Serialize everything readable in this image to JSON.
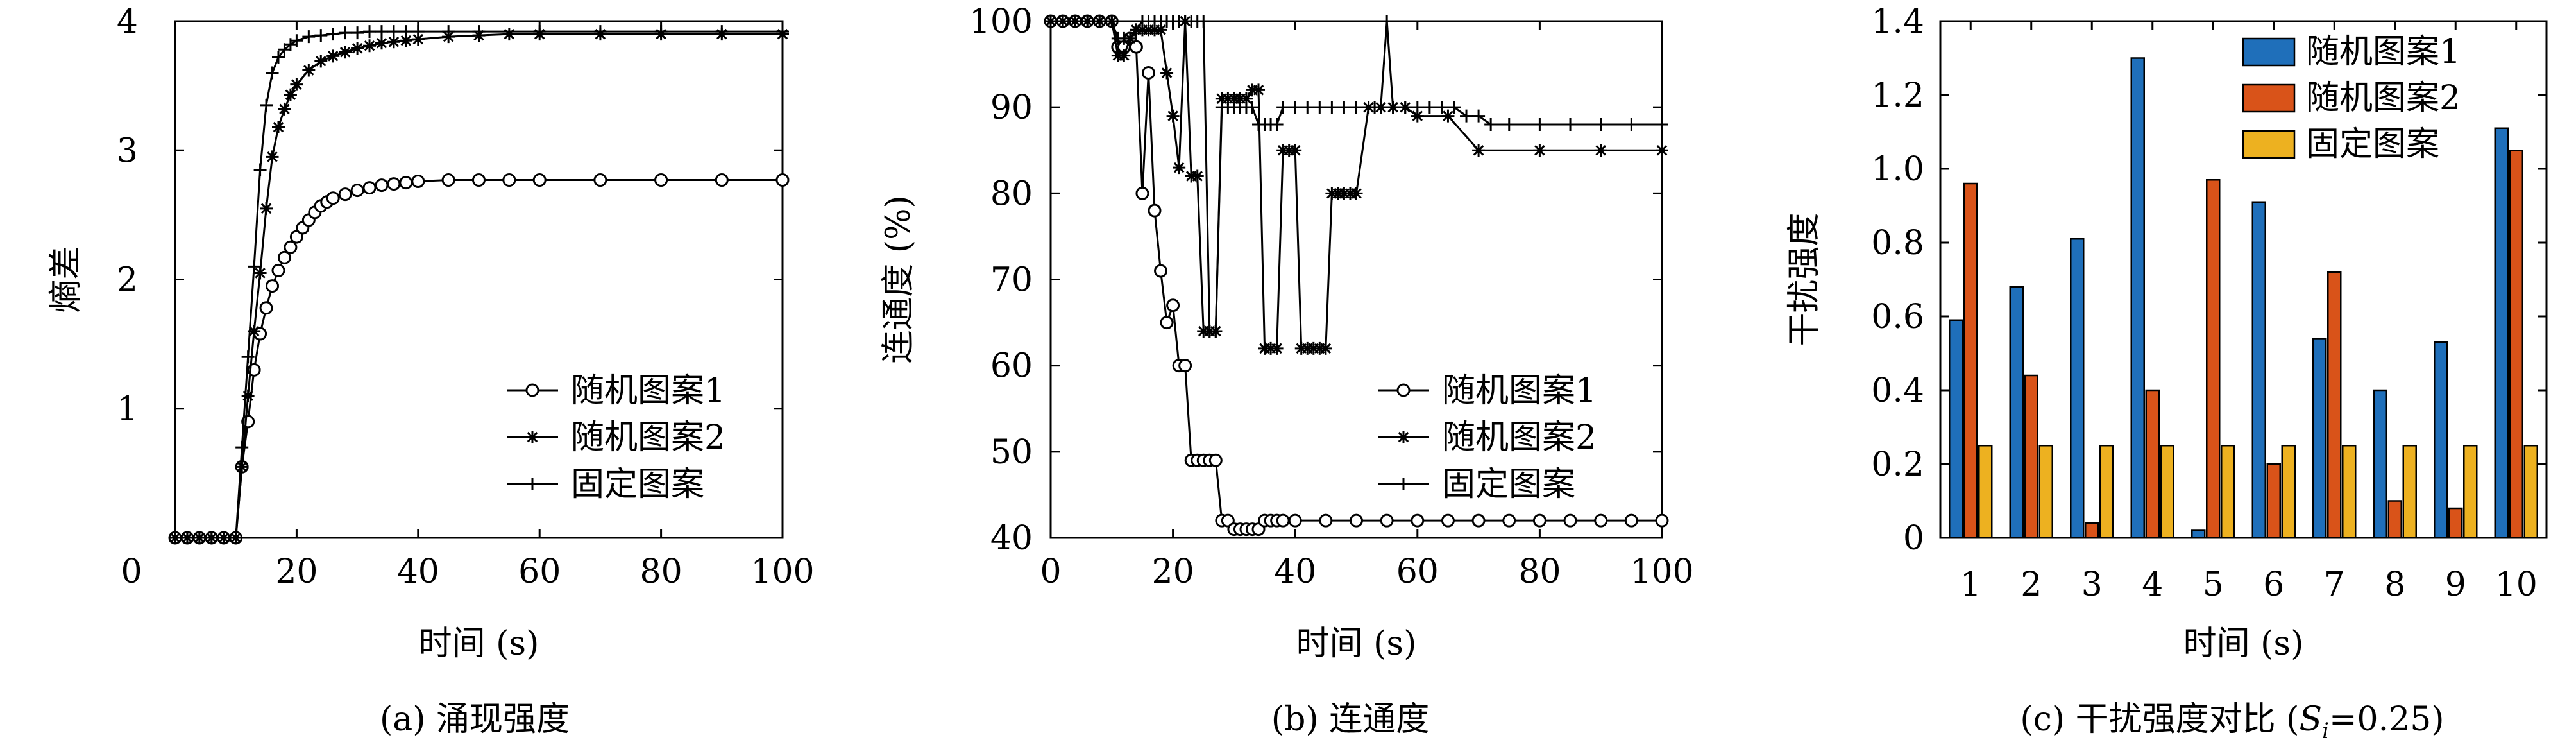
{
  "chart_data": [
    {
      "type": "line",
      "caption": "(a) 涌现强度",
      "xlabel": "时间 (s)",
      "ylabel": "熵差",
      "xlim": [
        0,
        100
      ],
      "ylim": [
        0,
        4
      ],
      "xticks": [
        0,
        20,
        40,
        60,
        80,
        100
      ],
      "yticks": [
        1,
        2,
        3,
        4
      ],
      "legend_position": "bottom-right",
      "series": [
        {
          "name": "随机图案1",
          "marker": "circle",
          "x": [
            0,
            2,
            4,
            6,
            8,
            10,
            11,
            12,
            13,
            14,
            15,
            16,
            17,
            18,
            19,
            20,
            21,
            22,
            23,
            24,
            25,
            26,
            28,
            30,
            32,
            34,
            36,
            38,
            40,
            45,
            50,
            55,
            60,
            70,
            80,
            90,
            100
          ],
          "y": [
            0,
            0,
            0,
            0,
            0,
            0,
            0.55,
            0.9,
            1.3,
            1.58,
            1.78,
            1.95,
            2.07,
            2.17,
            2.25,
            2.33,
            2.4,
            2.46,
            2.52,
            2.57,
            2.6,
            2.63,
            2.66,
            2.69,
            2.71,
            2.73,
            2.74,
            2.75,
            2.76,
            2.77,
            2.77,
            2.77,
            2.77,
            2.77,
            2.77,
            2.77,
            2.77
          ]
        },
        {
          "name": "随机图案2",
          "marker": "asterisk",
          "x": [
            0,
            2,
            4,
            6,
            8,
            10,
            11,
            12,
            13,
            14,
            15,
            16,
            17,
            18,
            19,
            20,
            22,
            24,
            26,
            28,
            30,
            32,
            34,
            36,
            38,
            40,
            45,
            50,
            55,
            60,
            70,
            80,
            90,
            100
          ],
          "y": [
            0,
            0,
            0,
            0,
            0,
            0,
            0.55,
            1.1,
            1.6,
            2.05,
            2.55,
            2.95,
            3.18,
            3.32,
            3.43,
            3.51,
            3.62,
            3.69,
            3.73,
            3.76,
            3.79,
            3.81,
            3.83,
            3.84,
            3.85,
            3.86,
            3.88,
            3.89,
            3.9,
            3.9,
            3.9,
            3.9,
            3.9,
            3.9
          ]
        },
        {
          "name": "固定图案",
          "marker": "plus",
          "x": [
            0,
            2,
            4,
            6,
            8,
            10,
            11,
            12,
            13,
            14,
            15,
            16,
            17,
            18,
            19,
            20,
            22,
            24,
            26,
            28,
            30,
            32,
            34,
            36,
            38,
            40,
            45,
            50,
            60,
            70,
            80,
            90,
            100
          ],
          "y": [
            0,
            0,
            0,
            0,
            0,
            0,
            0.7,
            1.4,
            2.1,
            2.85,
            3.35,
            3.6,
            3.72,
            3.78,
            3.82,
            3.85,
            3.88,
            3.89,
            3.9,
            3.91,
            3.91,
            3.92,
            3.92,
            3.92,
            3.92,
            3.92,
            3.92,
            3.92,
            3.92,
            3.92,
            3.92,
            3.92,
            3.92
          ]
        }
      ]
    },
    {
      "type": "line",
      "caption": "(b) 连通度",
      "xlabel": "时间 (s)",
      "ylabel": "连通度 (%)",
      "xlim": [
        0,
        100
      ],
      "ylim": [
        40,
        100
      ],
      "xticks": [
        0,
        20,
        40,
        60,
        80,
        100
      ],
      "yticks": [
        40,
        50,
        60,
        70,
        80,
        90,
        100
      ],
      "legend_position": "bottom-right",
      "series": [
        {
          "name": "随机图案1",
          "marker": "circle",
          "x": [
            0,
            2,
            4,
            6,
            8,
            10,
            11,
            12,
            13,
            14,
            15,
            16,
            17,
            18,
            19,
            20,
            21,
            22,
            23,
            24,
            25,
            26,
            27,
            28,
            29,
            30,
            31,
            32,
            33,
            34,
            35,
            36,
            37,
            38,
            40,
            45,
            50,
            55,
            60,
            65,
            70,
            75,
            80,
            85,
            90,
            95,
            100
          ],
          "y": [
            100,
            100,
            100,
            100,
            100,
            100,
            97,
            97,
            98,
            97,
            80,
            94,
            78,
            71,
            65,
            67,
            60,
            60,
            49,
            49,
            49,
            49,
            49,
            42,
            42,
            41,
            41,
            41,
            41,
            41,
            42,
            42,
            42,
            42,
            42,
            42,
            42,
            42,
            42,
            42,
            42,
            42,
            42,
            42,
            42,
            42,
            42
          ]
        },
        {
          "name": "随机图案2",
          "marker": "asterisk",
          "x": [
            0,
            2,
            4,
            6,
            8,
            10,
            11,
            12,
            13,
            14,
            15,
            16,
            17,
            18,
            19,
            20,
            21,
            22,
            23,
            24,
            25,
            26,
            27,
            28,
            29,
            30,
            31,
            32,
            33,
            34,
            35,
            36,
            37,
            38,
            39,
            40,
            41,
            42,
            43,
            44,
            45,
            46,
            47,
            48,
            49,
            50,
            52,
            54,
            56,
            58,
            60,
            65,
            70,
            80,
            90,
            100
          ],
          "y": [
            100,
            100,
            100,
            100,
            100,
            100,
            96,
            96,
            98,
            99,
            99,
            99,
            99,
            99,
            94,
            89,
            83,
            100,
            82,
            82,
            64,
            64,
            64,
            91,
            91,
            91,
            91,
            91,
            92,
            92,
            62,
            62,
            62,
            85,
            85,
            85,
            62,
            62,
            62,
            62,
            62,
            80,
            80,
            80,
            80,
            80,
            90,
            90,
            90,
            90,
            89,
            89,
            85,
            85,
            85,
            85
          ]
        },
        {
          "name": "固定图案",
          "marker": "plus",
          "x": [
            0,
            2,
            4,
            6,
            8,
            10,
            11,
            12,
            13,
            14,
            15,
            16,
            17,
            18,
            19,
            20,
            21,
            22,
            23,
            24,
            25,
            26,
            27,
            28,
            29,
            30,
            31,
            32,
            33,
            34,
            35,
            36,
            37,
            38,
            40,
            42,
            44,
            46,
            48,
            50,
            52,
            53,
            54,
            55,
            56,
            58,
            60,
            62,
            64,
            66,
            68,
            70,
            72,
            75,
            80,
            85,
            90,
            95,
            100
          ],
          "y": [
            100,
            100,
            100,
            100,
            100,
            100,
            98,
            98,
            98,
            99,
            100,
            100,
            100,
            100,
            100,
            100,
            100,
            100,
            100,
            100,
            100,
            64,
            64,
            90,
            90,
            90,
            90,
            90,
            90,
            88,
            88,
            88,
            88,
            90,
            90,
            90,
            90,
            90,
            90,
            90,
            90,
            90,
            90,
            100,
            90,
            90,
            90,
            90,
            90,
            90,
            89,
            89,
            88,
            88,
            88,
            88,
            88,
            88,
            88
          ]
        }
      ]
    },
    {
      "type": "bar",
      "caption": "(c) 干扰强度对比 (Sᵢ=0.25)",
      "caption_prefix": "(c) 干扰强度对比 (",
      "caption_var": "S",
      "caption_sub": "i",
      "caption_suffix": "=0.25)",
      "xlabel": "时间 (s)",
      "ylabel": "干扰强度",
      "ylim": [
        0,
        1.4
      ],
      "yticks": [
        0,
        0.2,
        0.4,
        0.6,
        0.8,
        1.0,
        1.2,
        1.4
      ],
      "ytick_labels": [
        "0",
        "0.2",
        "0.4",
        "0.6",
        "0.8",
        "1.0",
        "1.2",
        "1.4"
      ],
      "categories": [
        "1",
        "2",
        "3",
        "4",
        "5",
        "6",
        "7",
        "8",
        "9",
        "10"
      ],
      "legend_position": "top-right",
      "series": [
        {
          "name": "随机图案1",
          "color": "#1f6fba",
          "values": [
            0.59,
            0.68,
            0.81,
            1.3,
            0.02,
            0.91,
            0.54,
            0.4,
            0.53,
            1.11
          ]
        },
        {
          "name": "随机图案2",
          "color": "#d95319",
          "values": [
            0.96,
            0.44,
            0.04,
            0.4,
            0.97,
            0.2,
            0.72,
            0.1,
            0.08,
            1.05
          ]
        },
        {
          "name": "固定图案",
          "color": "#edb120",
          "values": [
            0.25,
            0.25,
            0.25,
            0.25,
            0.25,
            0.25,
            0.25,
            0.25,
            0.25,
            0.25
          ]
        }
      ]
    }
  ]
}
